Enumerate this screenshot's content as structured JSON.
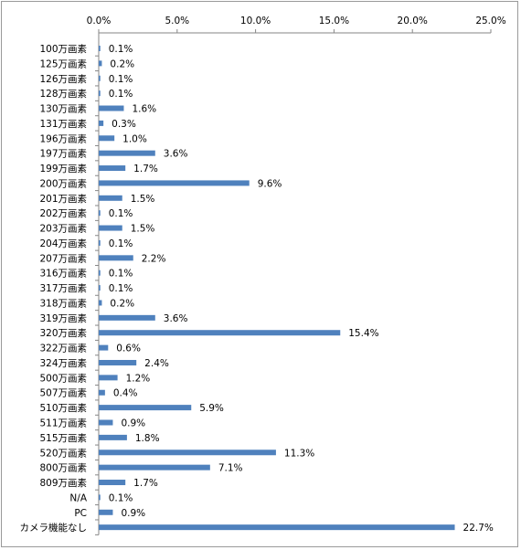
{
  "chart_data": {
    "type": "bar",
    "orientation": "horizontal",
    "x_ticks": [
      "0.0%",
      "5.0%",
      "10.0%",
      "15.0%",
      "20.0%",
      "25.0%"
    ],
    "xlim": [
      0,
      25
    ],
    "x_axis_position": "top",
    "grid": false,
    "legend": "none",
    "bar_color": "#4F81BD",
    "categories": [
      "100万画素",
      "125万画素",
      "126万画素",
      "128万画素",
      "130万画素",
      "131万画素",
      "196万画素",
      "197万画素",
      "199万画素",
      "200万画素",
      "201万画素",
      "202万画素",
      "203万画素",
      "204万画素",
      "207万画素",
      "316万画素",
      "317万画素",
      "318万画素",
      "319万画素",
      "320万画素",
      "322万画素",
      "324万画素",
      "500万画素",
      "507万画素",
      "510万画素",
      "511万画素",
      "515万画素",
      "520万画素",
      "800万画素",
      "809万画素",
      "N/A",
      "PC",
      "カメラ機能なし"
    ],
    "values": [
      0.1,
      0.2,
      0.1,
      0.1,
      1.6,
      0.3,
      1.0,
      3.6,
      1.7,
      9.6,
      1.5,
      0.1,
      1.5,
      0.1,
      2.2,
      0.1,
      0.1,
      0.2,
      3.6,
      15.4,
      0.6,
      2.4,
      1.2,
      0.4,
      5.9,
      0.9,
      1.8,
      11.3,
      7.1,
      1.7,
      0.1,
      0.9,
      22.7
    ],
    "data_labels": [
      "0.1%",
      "0.2%",
      "0.1%",
      "0.1%",
      "1.6%",
      "0.3%",
      "1.0%",
      "3.6%",
      "1.7%",
      "9.6%",
      "1.5%",
      "0.1%",
      "1.5%",
      "0.1%",
      "2.2%",
      "0.1%",
      "0.1%",
      "0.2%",
      "3.6%",
      "15.4%",
      "0.6%",
      "2.4%",
      "1.2%",
      "0.4%",
      "5.9%",
      "0.9%",
      "1.8%",
      "11.3%",
      "7.1%",
      "1.7%",
      "0.1%",
      "0.9%",
      "22.7%"
    ]
  }
}
